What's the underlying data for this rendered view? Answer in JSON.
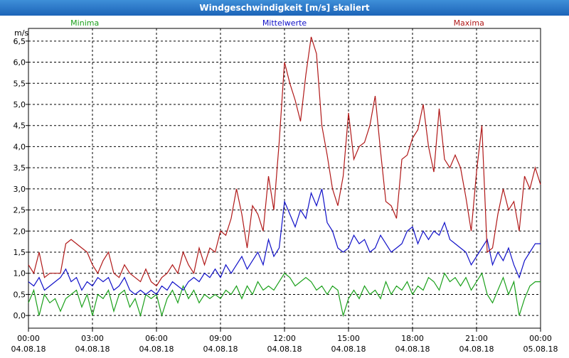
{
  "window": {
    "title": "Windgeschwindigkeit [m/s] skaliert"
  },
  "chart_data": {
    "type": "line",
    "ylabel": "m/s",
    "ylim": [
      -0.3,
      6.8
    ],
    "y_ticks": [
      "0,0",
      "0,5",
      "1,0",
      "1,5",
      "2,0",
      "2,5",
      "3,0",
      "3,5",
      "4,0",
      "4,5",
      "5,0",
      "5,5",
      "6,0",
      "6,5"
    ],
    "y_tick_values": [
      0,
      0.5,
      1,
      1.5,
      2,
      2.5,
      3,
      3.5,
      4,
      4.5,
      5,
      5.5,
      6,
      6.5
    ],
    "x_ticks": [
      {
        "time": "00:00",
        "date": "04.08.18",
        "hour": 0
      },
      {
        "time": "03:00",
        "date": "04.08.18",
        "hour": 3
      },
      {
        "time": "06:00",
        "date": "04.08.18",
        "hour": 6
      },
      {
        "time": "09:00",
        "date": "04.08.18",
        "hour": 9
      },
      {
        "time": "12:00",
        "date": "04.08.18",
        "hour": 12
      },
      {
        "time": "15:00",
        "date": "04.08.18",
        "hour": 15
      },
      {
        "time": "18:00",
        "date": "04.08.18",
        "hour": 18
      },
      {
        "time": "21:00",
        "date": "04.08.18",
        "hour": 21
      },
      {
        "time": "00:00",
        "date": "05.08.18",
        "hour": 24
      }
    ],
    "grid": true,
    "legend_placement": "top",
    "series": [
      {
        "name": "Minima",
        "color": "#1aa01a",
        "points": [
          [
            0,
            0.3
          ],
          [
            0.25,
            0.6
          ],
          [
            0.5,
            0
          ],
          [
            0.75,
            0.5
          ],
          [
            1.0,
            0.3
          ],
          [
            1.25,
            0.4
          ],
          [
            1.5,
            0.1
          ],
          [
            1.75,
            0.4
          ],
          [
            2.0,
            0.5
          ],
          [
            2.25,
            0.6
          ],
          [
            2.5,
            0.2
          ],
          [
            2.75,
            0.5
          ],
          [
            3.0,
            0
          ],
          [
            3.25,
            0.5
          ],
          [
            3.5,
            0.4
          ],
          [
            3.75,
            0.6
          ],
          [
            4.0,
            0.1
          ],
          [
            4.25,
            0.5
          ],
          [
            4.5,
            0.6
          ],
          [
            4.75,
            0.2
          ],
          [
            5.0,
            0.4
          ],
          [
            5.25,
            0
          ],
          [
            5.5,
            0.5
          ],
          [
            5.75,
            0.4
          ],
          [
            6.0,
            0.5
          ],
          [
            6.25,
            0
          ],
          [
            6.5,
            0.4
          ],
          [
            6.75,
            0.6
          ],
          [
            7.0,
            0.3
          ],
          [
            7.25,
            0.7
          ],
          [
            7.5,
            0.4
          ],
          [
            7.75,
            0.6
          ],
          [
            8.0,
            0.3
          ],
          [
            8.25,
            0.5
          ],
          [
            8.5,
            0.4
          ],
          [
            8.75,
            0.5
          ],
          [
            9.0,
            0.4
          ],
          [
            9.25,
            0.6
          ],
          [
            9.5,
            0.5
          ],
          [
            9.75,
            0.7
          ],
          [
            10.0,
            0.4
          ],
          [
            10.25,
            0.7
          ],
          [
            10.5,
            0.5
          ],
          [
            10.75,
            0.8
          ],
          [
            11.0,
            0.6
          ],
          [
            11.25,
            0.7
          ],
          [
            11.5,
            0.6
          ],
          [
            11.75,
            0.8
          ],
          [
            12.0,
            1.0
          ],
          [
            12.25,
            0.9
          ],
          [
            12.5,
            0.7
          ],
          [
            12.75,
            0.8
          ],
          [
            13.0,
            0.9
          ],
          [
            13.25,
            0.8
          ],
          [
            13.5,
            0.6
          ],
          [
            13.75,
            0.7
          ],
          [
            14.0,
            0.5
          ],
          [
            14.25,
            0.7
          ],
          [
            14.5,
            0.6
          ],
          [
            14.75,
            0
          ],
          [
            15.0,
            0.4
          ],
          [
            15.25,
            0.6
          ],
          [
            15.5,
            0.4
          ],
          [
            15.75,
            0.7
          ],
          [
            16.0,
            0.5
          ],
          [
            16.25,
            0.6
          ],
          [
            16.5,
            0.4
          ],
          [
            16.75,
            0.8
          ],
          [
            17.0,
            0.5
          ],
          [
            17.25,
            0.7
          ],
          [
            17.5,
            0.6
          ],
          [
            17.75,
            0.8
          ],
          [
            18.0,
            0.5
          ],
          [
            18.25,
            0.7
          ],
          [
            18.5,
            0.6
          ],
          [
            18.75,
            0.9
          ],
          [
            19.0,
            0.8
          ],
          [
            19.25,
            0.6
          ],
          [
            19.5,
            1.0
          ],
          [
            19.75,
            0.8
          ],
          [
            20.0,
            0.9
          ],
          [
            20.25,
            0.7
          ],
          [
            20.5,
            0.9
          ],
          [
            20.75,
            0.6
          ],
          [
            21.0,
            0.8
          ],
          [
            21.25,
            1.0
          ],
          [
            21.5,
            0.5
          ],
          [
            21.75,
            0.3
          ],
          [
            22.0,
            0.6
          ],
          [
            22.25,
            0.9
          ],
          [
            22.5,
            0.5
          ],
          [
            22.75,
            0.8
          ],
          [
            23.0,
            0
          ],
          [
            23.25,
            0.4
          ],
          [
            23.5,
            0.7
          ],
          [
            23.75,
            0.8
          ],
          [
            24.0,
            0.8
          ]
        ]
      },
      {
        "name": "Mittelwerte",
        "color": "#1010c8",
        "points": [
          [
            0,
            0.8
          ],
          [
            0.25,
            0.7
          ],
          [
            0.5,
            0.9
          ],
          [
            0.75,
            0.6
          ],
          [
            1.0,
            0.7
          ],
          [
            1.25,
            0.8
          ],
          [
            1.5,
            0.9
          ],
          [
            1.75,
            1.1
          ],
          [
            2.0,
            0.8
          ],
          [
            2.25,
            0.9
          ],
          [
            2.5,
            0.6
          ],
          [
            2.75,
            0.8
          ],
          [
            3.0,
            0.7
          ],
          [
            3.25,
            0.9
          ],
          [
            3.5,
            0.8
          ],
          [
            3.75,
            0.9
          ],
          [
            4.0,
            0.6
          ],
          [
            4.25,
            0.7
          ],
          [
            4.5,
            0.9
          ],
          [
            4.75,
            0.6
          ],
          [
            5.0,
            0.5
          ],
          [
            5.25,
            0.6
          ],
          [
            5.5,
            0.5
          ],
          [
            5.75,
            0.6
          ],
          [
            6.0,
            0.5
          ],
          [
            6.25,
            0.7
          ],
          [
            6.5,
            0.6
          ],
          [
            6.75,
            0.8
          ],
          [
            7.0,
            0.7
          ],
          [
            7.25,
            0.6
          ],
          [
            7.5,
            0.8
          ],
          [
            7.75,
            0.9
          ],
          [
            8.0,
            0.8
          ],
          [
            8.25,
            1.0
          ],
          [
            8.5,
            0.9
          ],
          [
            8.75,
            1.1
          ],
          [
            9.0,
            0.9
          ],
          [
            9.25,
            1.2
          ],
          [
            9.5,
            1.0
          ],
          [
            9.75,
            1.2
          ],
          [
            10.0,
            1.4
          ],
          [
            10.25,
            1.1
          ],
          [
            10.5,
            1.3
          ],
          [
            10.75,
            1.5
          ],
          [
            11.0,
            1.2
          ],
          [
            11.25,
            1.8
          ],
          [
            11.5,
            1.4
          ],
          [
            11.75,
            1.6
          ],
          [
            12.0,
            2.7
          ],
          [
            12.25,
            2.4
          ],
          [
            12.5,
            2.1
          ],
          [
            12.75,
            2.5
          ],
          [
            13.0,
            2.3
          ],
          [
            13.25,
            2.9
          ],
          [
            13.5,
            2.6
          ],
          [
            13.75,
            3.0
          ],
          [
            14.0,
            2.2
          ],
          [
            14.25,
            2.0
          ],
          [
            14.5,
            1.6
          ],
          [
            14.75,
            1.5
          ],
          [
            15.0,
            1.6
          ],
          [
            15.25,
            1.9
          ],
          [
            15.5,
            1.7
          ],
          [
            15.75,
            1.8
          ],
          [
            16.0,
            1.5
          ],
          [
            16.25,
            1.6
          ],
          [
            16.5,
            1.9
          ],
          [
            16.75,
            1.7
          ],
          [
            17.0,
            1.5
          ],
          [
            17.25,
            1.6
          ],
          [
            17.5,
            1.7
          ],
          [
            17.75,
            2.0
          ],
          [
            18.0,
            2.1
          ],
          [
            18.25,
            1.7
          ],
          [
            18.5,
            2.0
          ],
          [
            18.75,
            1.8
          ],
          [
            19.0,
            2.0
          ],
          [
            19.25,
            1.9
          ],
          [
            19.5,
            2.2
          ],
          [
            19.75,
            1.8
          ],
          [
            20.0,
            1.7
          ],
          [
            20.25,
            1.6
          ],
          [
            20.5,
            1.5
          ],
          [
            20.75,
            1.2
          ],
          [
            21.0,
            1.4
          ],
          [
            21.25,
            1.6
          ],
          [
            21.5,
            1.8
          ],
          [
            21.75,
            1.2
          ],
          [
            22.0,
            1.5
          ],
          [
            22.25,
            1.3
          ],
          [
            22.5,
            1.6
          ],
          [
            22.75,
            1.2
          ],
          [
            23.0,
            0.9
          ],
          [
            23.25,
            1.3
          ],
          [
            23.5,
            1.5
          ],
          [
            23.75,
            1.7
          ],
          [
            24.0,
            1.7
          ]
        ]
      },
      {
        "name": "Maxima",
        "color": "#b01818",
        "points": [
          [
            0,
            1.2
          ],
          [
            0.25,
            1.0
          ],
          [
            0.5,
            1.5
          ],
          [
            0.75,
            0.9
          ],
          [
            1.0,
            1.0
          ],
          [
            1.25,
            1.0
          ],
          [
            1.5,
            1.0
          ],
          [
            1.75,
            1.7
          ],
          [
            2.0,
            1.8
          ],
          [
            2.25,
            1.7
          ],
          [
            2.5,
            1.6
          ],
          [
            2.75,
            1.5
          ],
          [
            3.0,
            1.2
          ],
          [
            3.25,
            1.0
          ],
          [
            3.5,
            1.3
          ],
          [
            3.75,
            1.5
          ],
          [
            4.0,
            1.0
          ],
          [
            4.25,
            0.9
          ],
          [
            4.5,
            1.2
          ],
          [
            4.75,
            1.0
          ],
          [
            5.0,
            0.9
          ],
          [
            5.25,
            0.8
          ],
          [
            5.5,
            1.1
          ],
          [
            5.75,
            0.8
          ],
          [
            6.0,
            0.7
          ],
          [
            6.25,
            0.9
          ],
          [
            6.5,
            1.0
          ],
          [
            6.75,
            1.2
          ],
          [
            7.0,
            1.0
          ],
          [
            7.25,
            1.5
          ],
          [
            7.5,
            1.2
          ],
          [
            7.75,
            1.0
          ],
          [
            8.0,
            1.6
          ],
          [
            8.25,
            1.2
          ],
          [
            8.5,
            1.6
          ],
          [
            8.75,
            1.5
          ],
          [
            9.0,
            2.0
          ],
          [
            9.25,
            1.9
          ],
          [
            9.5,
            2.3
          ],
          [
            9.75,
            3.0
          ],
          [
            10.0,
            2.4
          ],
          [
            10.25,
            1.6
          ],
          [
            10.5,
            2.6
          ],
          [
            10.75,
            2.4
          ],
          [
            11.0,
            2.0
          ],
          [
            11.25,
            3.3
          ],
          [
            11.5,
            2.5
          ],
          [
            11.75,
            4.1
          ],
          [
            12.0,
            6.0
          ],
          [
            12.25,
            5.5
          ],
          [
            12.5,
            5.1
          ],
          [
            12.75,
            4.6
          ],
          [
            13.0,
            5.7
          ],
          [
            13.25,
            6.6
          ],
          [
            13.5,
            6.2
          ],
          [
            13.75,
            4.5
          ],
          [
            14.0,
            3.8
          ],
          [
            14.25,
            3.0
          ],
          [
            14.5,
            2.6
          ],
          [
            14.75,
            3.3
          ],
          [
            15.0,
            4.8
          ],
          [
            15.25,
            3.7
          ],
          [
            15.5,
            4.0
          ],
          [
            15.75,
            4.1
          ],
          [
            16.0,
            4.5
          ],
          [
            16.25,
            5.2
          ],
          [
            16.5,
            3.9
          ],
          [
            16.75,
            2.7
          ],
          [
            17.0,
            2.6
          ],
          [
            17.25,
            2.3
          ],
          [
            17.5,
            3.7
          ],
          [
            17.75,
            3.8
          ],
          [
            18.0,
            4.2
          ],
          [
            18.25,
            4.4
          ],
          [
            18.5,
            5.0
          ],
          [
            18.75,
            4.0
          ],
          [
            19.0,
            3.4
          ],
          [
            19.25,
            4.9
          ],
          [
            19.5,
            3.7
          ],
          [
            19.75,
            3.5
          ],
          [
            20.0,
            3.8
          ],
          [
            20.25,
            3.5
          ],
          [
            20.5,
            2.8
          ],
          [
            20.75,
            2.0
          ],
          [
            21.0,
            3.4
          ],
          [
            21.25,
            4.5
          ],
          [
            21.5,
            1.5
          ],
          [
            21.75,
            1.6
          ],
          [
            22.0,
            2.4
          ],
          [
            22.25,
            3.0
          ],
          [
            22.5,
            2.5
          ],
          [
            22.75,
            2.7
          ],
          [
            23.0,
            2.0
          ],
          [
            23.25,
            3.3
          ],
          [
            23.5,
            3.0
          ],
          [
            23.75,
            3.5
          ],
          [
            24.0,
            3.1
          ]
        ]
      }
    ]
  }
}
